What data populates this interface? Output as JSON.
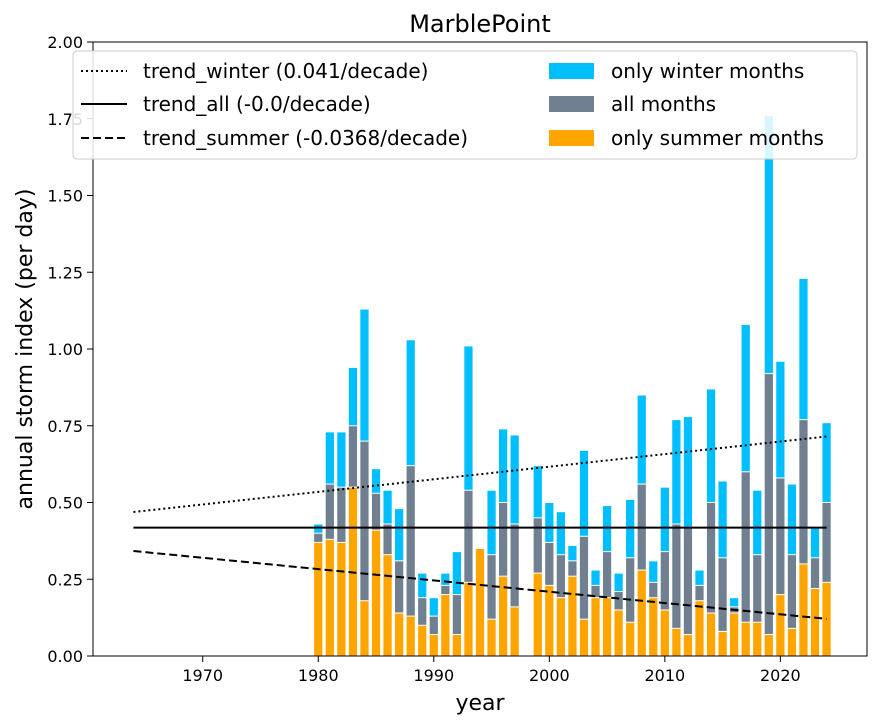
{
  "chart_data": {
    "type": "bar",
    "title": "MarblePoint",
    "xlabel": "year",
    "ylabel": "annual storm index (per day)",
    "xlim": [
      1960.5,
      2027.5
    ],
    "ylim": [
      0,
      2.0
    ],
    "x_ticks": [
      1970,
      1980,
      1990,
      2000,
      2010,
      2020
    ],
    "y_ticks": [
      0.0,
      0.25,
      0.5,
      0.75,
      1.0,
      1.25,
      1.5,
      1.75,
      2.0
    ],
    "y_tick_labels": [
      "0.00",
      "0.25",
      "0.50",
      "0.75",
      "1.00",
      "1.25",
      "1.50",
      "1.75",
      "2.00"
    ],
    "x_tick_labels": [
      "1970",
      "1980",
      "1990",
      "2000",
      "2010",
      "2020"
    ],
    "grid": false,
    "legend_position": "top",
    "years": [
      1980,
      1981,
      1982,
      1983,
      1984,
      1985,
      1986,
      1987,
      1988,
      1989,
      1990,
      1991,
      1992,
      1993,
      1994,
      1995,
      1996,
      1997,
      1998,
      1999,
      2000,
      2001,
      2002,
      2003,
      2004,
      2005,
      2006,
      2007,
      2008,
      2009,
      2010,
      2011,
      2012,
      2013,
      2014,
      2015,
      2016,
      2017,
      2018,
      2019,
      2020,
      2021,
      2022,
      2023,
      2024
    ],
    "series": [
      {
        "name": "only winter months",
        "color": "#00bfff",
        "values": [
          0.43,
          0.73,
          0.73,
          0.94,
          1.13,
          0.61,
          0.54,
          0.48,
          1.03,
          0.27,
          0.19,
          0.27,
          0.34,
          1.01,
          0.13,
          0.54,
          0.74,
          0.72,
          0.0,
          0.62,
          0.5,
          0.47,
          0.36,
          0.67,
          0.28,
          0.49,
          0.27,
          0.51,
          0.85,
          0.31,
          0.55,
          0.77,
          0.78,
          0.28,
          0.87,
          0.57,
          0.19,
          1.08,
          0.54,
          1.76,
          0.96,
          0.56,
          1.23,
          0.42,
          0.76
        ]
      },
      {
        "name": "all months",
        "color": "#708090",
        "values": [
          0.4,
          0.56,
          0.55,
          0.75,
          0.7,
          0.53,
          0.43,
          0.31,
          0.62,
          0.19,
          0.13,
          0.23,
          0.2,
          0.54,
          0.26,
          0.33,
          0.5,
          0.43,
          0.0,
          0.45,
          0.37,
          0.33,
          0.31,
          0.39,
          0.23,
          0.34,
          0.21,
          0.32,
          0.56,
          0.24,
          0.34,
          0.43,
          0.42,
          0.23,
          0.5,
          0.32,
          0.16,
          0.6,
          0.33,
          0.92,
          0.58,
          0.33,
          0.77,
          0.32,
          0.5
        ]
      },
      {
        "name": "only summer months",
        "color": "#ffa500",
        "values": [
          0.37,
          0.38,
          0.37,
          0.55,
          0.18,
          0.41,
          0.33,
          0.14,
          0.13,
          0.1,
          0.07,
          0.2,
          0.07,
          0.24,
          0.35,
          0.12,
          0.26,
          0.16,
          0.0,
          0.27,
          0.23,
          0.19,
          0.26,
          0.12,
          0.19,
          0.19,
          0.15,
          0.11,
          0.28,
          0.19,
          0.15,
          0.09,
          0.07,
          0.18,
          0.14,
          0.08,
          0.14,
          0.11,
          0.11,
          0.07,
          0.2,
          0.09,
          0.3,
          0.22,
          0.24
        ]
      }
    ],
    "trends": [
      {
        "name": "trend_winter (0.041/decade)",
        "style": "dotted",
        "x": [
          1964,
          2024
        ],
        "y": [
          0.469,
          0.715
        ]
      },
      {
        "name": "trend_all (-0.0/decade)",
        "style": "solid",
        "x": [
          1964,
          2024
        ],
        "y": [
          0.418,
          0.418
        ]
      },
      {
        "name": "trend_summer (-0.0368/decade)",
        "style": "dashed",
        "x": [
          1964,
          2024
        ],
        "y": [
          0.342,
          0.121
        ]
      }
    ]
  }
}
